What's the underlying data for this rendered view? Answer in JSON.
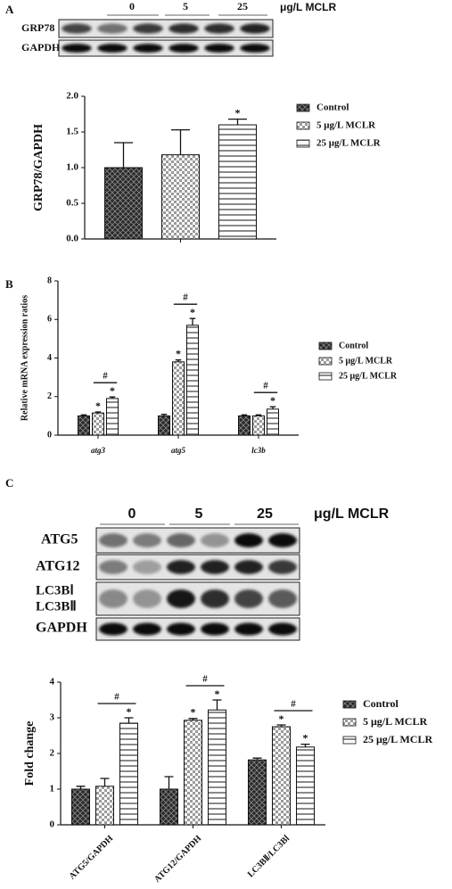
{
  "panel_labels": [
    "A",
    "B",
    "C"
  ],
  "blot_A": {
    "lanes": [
      "0",
      "5",
      "25"
    ],
    "unit": "μg/L  MCLR",
    "rows": [
      "GRP78",
      "GAPDH"
    ]
  },
  "blot_C": {
    "lanes": [
      "0",
      "5",
      "25"
    ],
    "unit": "μg/L  MCLR",
    "rows": [
      "ATG5",
      "ATG12",
      "LC3BⅠ",
      "LC3BⅡ",
      "GAPDH"
    ]
  },
  "chart_data": [
    {
      "type": "bar",
      "y_label": "GRP78/GAPDH",
      "categories": [
        null
      ],
      "ylim": [
        0,
        2
      ],
      "yticks": [
        {
          "value": 0,
          "label": "0.0"
        },
        {
          "value": 0.5,
          "label": "0.5"
        },
        {
          "value": 1,
          "label": "1.0"
        },
        {
          "value": 1.5,
          "label": "1.5"
        },
        {
          "value": 2,
          "label": "2.0"
        }
      ],
      "legend": "right",
      "series": [
        {
          "name": "Control",
          "color": "#2a2a2a",
          "pattern": "cross",
          "values": [
            1.0
          ],
          "errors": [
            0.35
          ],
          "significance": [
            null
          ]
        },
        {
          "name": "5 μg/L  MCLR",
          "color": "#9a9a9a",
          "pattern": "checker",
          "values": [
            1.18
          ],
          "errors": [
            0.35
          ],
          "significance": [
            null
          ]
        },
        {
          "name": "25 μg/L  MCLR",
          "color": "#8a8a8a",
          "pattern": "horizontal",
          "values": [
            1.6
          ],
          "errors": [
            0.08
          ],
          "significance": [
            "*"
          ]
        }
      ]
    },
    {
      "type": "bar",
      "y_label": "Relative mRNA expression ratios",
      "categories": [
        "atg3",
        "atg5",
        "lc3b"
      ],
      "ylim": [
        0,
        8
      ],
      "yticks": [
        0,
        2,
        4,
        6,
        8
      ],
      "legend": "right",
      "series": [
        {
          "name": "Control",
          "color": "#2a2a2a",
          "pattern": "cross",
          "values": [
            1.0,
            1.0,
            1.0
          ],
          "errors": [
            0.05,
            0.08,
            0.05
          ],
          "significance": [
            null,
            null,
            null
          ]
        },
        {
          "name": "5 μg/L  MCLR",
          "color": "#9a9a9a",
          "pattern": "checker",
          "values": [
            1.15,
            3.8,
            1.0
          ],
          "errors": [
            0.05,
            0.1,
            0.05
          ],
          "significance": [
            "*",
            "*",
            null
          ]
        },
        {
          "name": "25 μg/L  MCLR",
          "color": "#8a8a8a",
          "pattern": "horizontal",
          "values": [
            1.9,
            5.7,
            1.35
          ],
          "errors": [
            0.08,
            0.35,
            0.12
          ],
          "significance": [
            "*",
            "*",
            "*"
          ]
        }
      ],
      "brackets": [
        "#",
        "#",
        "#"
      ]
    },
    {
      "type": "bar",
      "y_label": "Fold change",
      "categories": [
        "ATG5/GAPDH",
        "ATG12/GAPDH",
        "LC3BⅡ/LC3BⅠ"
      ],
      "ylim": [
        0,
        4
      ],
      "yticks": [
        0,
        1,
        2,
        3,
        4
      ],
      "legend": "right",
      "series": [
        {
          "name": "Control",
          "color": "#2a2a2a",
          "pattern": "cross",
          "values": [
            1.0,
            1.0,
            1.82
          ],
          "errors": [
            0.08,
            0.35,
            0.05
          ],
          "significance": [
            null,
            null,
            null
          ]
        },
        {
          "name": "5 μg/L  MCLR",
          "color": "#9a9a9a",
          "pattern": "checker",
          "values": [
            1.08,
            2.93,
            2.75
          ],
          "errors": [
            0.22,
            0.05,
            0.05
          ],
          "significance": [
            null,
            "*",
            "*"
          ]
        },
        {
          "name": "25 μg/L  MCLR",
          "color": "#8a8a8a",
          "pattern": "horizontal",
          "values": [
            2.85,
            3.22,
            2.18
          ],
          "errors": [
            0.15,
            0.28,
            0.08
          ],
          "significance": [
            "*",
            "*",
            "*"
          ]
        }
      ],
      "brackets": [
        "#",
        "#",
        "#"
      ]
    }
  ]
}
